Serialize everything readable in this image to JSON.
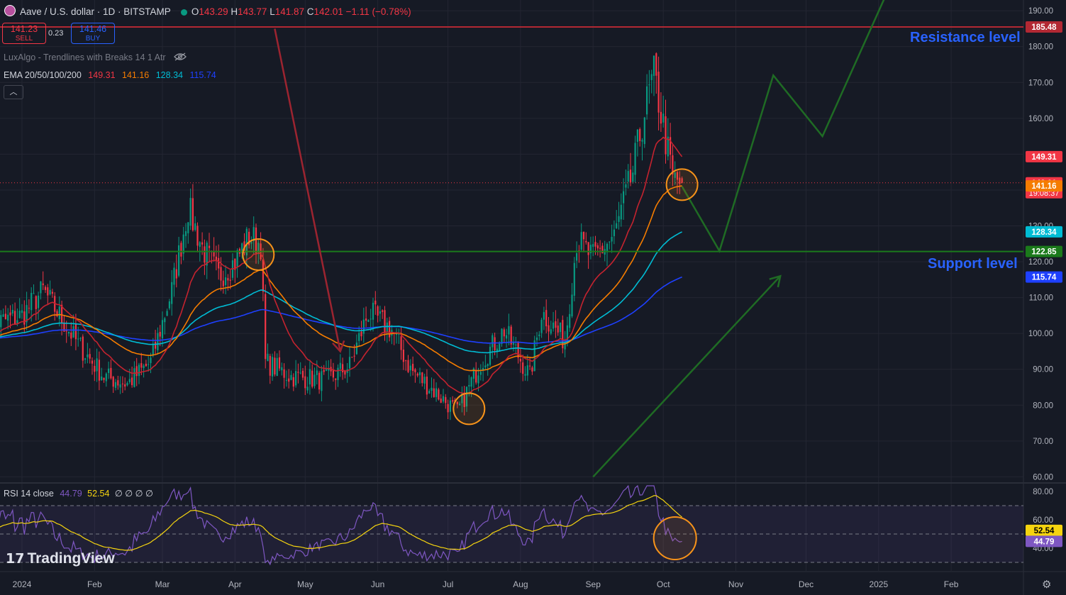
{
  "header": {
    "symbol_title": "Aave / U.S. dollar · 1D · BITSTAMP",
    "open_label": "O",
    "open": "143.29",
    "high_label": "H",
    "high": "143.77",
    "low_label": "L",
    "low": "141.87",
    "close_label": "C",
    "close": "142.01",
    "change": "−1.11 (−0.78%)"
  },
  "trade": {
    "sell_price": "141.23",
    "sell_label": "SELL",
    "spread": "0.23",
    "buy_price": "141.46",
    "buy_label": "BUY"
  },
  "indicators": {
    "luxalgo": "LuxAlgo - Trendlines with Breaks 14 1 Atr",
    "ema_label": "EMA 20/50/100/200",
    "ema_values": [
      "149.31",
      "141.16",
      "128.34",
      "115.74"
    ],
    "ema_colors": [
      "#f23645",
      "#f57c00",
      "#00bcd4",
      "#1e40ff"
    ],
    "collapse_icon": "chevron-up-icon",
    "visibility_icon": "eye-off-icon",
    "rsi_label": "RSI 14 close",
    "rsi_value": "44.79",
    "rsi_ma_value": "52.54",
    "rsi_na": "∅ ∅ ∅ ∅"
  },
  "annotations": {
    "resistance": "Resistance level",
    "support": "Support level"
  },
  "branding": {
    "logo_text": "TradingView",
    "logo_icon": "tradingview-logo-icon",
    "settings_icon": "gear-icon"
  },
  "colors": {
    "background": "#161a25",
    "up": "#089981",
    "down": "#f23645",
    "resistance_line": "#b22833",
    "support_line": "#1b7a1b",
    "projection": "#1f6b24",
    "circle": "#f7931a",
    "rsi_line": "#7e57c2",
    "rsi_ma": "#f5d40f",
    "annotation_text": "#2962ff"
  },
  "chart_data": [
    {
      "type": "candlestick",
      "price_axis": {
        "ticks": [
          60,
          70,
          80,
          90,
          100,
          110,
          120,
          130,
          140,
          150,
          160,
          170,
          180,
          190
        ],
        "range": [
          58.5,
          193
        ]
      },
      "time_axis": {
        "labels": [
          "2024",
          "Feb",
          "Mar",
          "Apr",
          "May",
          "Jun",
          "Jul",
          "Aug",
          "Sep",
          "Oct",
          "Nov",
          "Dec",
          "2025",
          "Feb"
        ]
      },
      "price_labels": [
        {
          "value": 185.48,
          "text": "185.48",
          "color": "#b22833"
        },
        {
          "value": 149.31,
          "text": "149.31",
          "color": "#f23645"
        },
        {
          "value": 142.01,
          "text": "142.01",
          "sub": "19:08:37",
          "color": "#f23645"
        },
        {
          "value": 141.16,
          "text": "141.16",
          "color": "#f57c00"
        },
        {
          "value": 128.34,
          "text": "128.34",
          "color": "#00bcd4"
        },
        {
          "value": 122.85,
          "text": "122.85",
          "color": "#1b7a1b"
        },
        {
          "value": 115.74,
          "text": "115.74",
          "color": "#1e40ff"
        }
      ],
      "horizontal_levels": [
        {
          "name": "resistance",
          "value": 185.48
        },
        {
          "name": "support",
          "value": 122.85
        }
      ],
      "close_anchors": [
        [
          "2023-12-16",
          102
        ],
        [
          "2024-01-01",
          105
        ],
        [
          "2024-01-10",
          112
        ],
        [
          "2024-01-25",
          97
        ],
        [
          "2024-02-05",
          88
        ],
        [
          "2024-02-15",
          86
        ],
        [
          "2024-02-25",
          92
        ],
        [
          "2024-03-05",
          112
        ],
        [
          "2024-03-12",
          135
        ],
        [
          "2024-03-18",
          124
        ],
        [
          "2024-03-25",
          116
        ],
        [
          "2024-04-01",
          120
        ],
        [
          "2024-04-07",
          127
        ],
        [
          "2024-04-12",
          125
        ],
        [
          "2024-04-14",
          92
        ],
        [
          "2024-04-25",
          88
        ],
        [
          "2024-05-10",
          87
        ],
        [
          "2024-05-20",
          91
        ],
        [
          "2024-05-28",
          106
        ],
        [
          "2024-06-07",
          101
        ],
        [
          "2024-06-15",
          90
        ],
        [
          "2024-06-25",
          84
        ],
        [
          "2024-07-05",
          78
        ],
        [
          "2024-07-15",
          92
        ],
        [
          "2024-07-25",
          101
        ],
        [
          "2024-08-05",
          88
        ],
        [
          "2024-08-10",
          106
        ],
        [
          "2024-08-20",
          98
        ],
        [
          "2024-08-25",
          126
        ],
        [
          "2024-09-01",
          121
        ],
        [
          "2024-09-10",
          127
        ],
        [
          "2024-09-18",
          145
        ],
        [
          "2024-09-23",
          162
        ],
        [
          "2024-09-27",
          172
        ],
        [
          "2024-10-01",
          158
        ],
        [
          "2024-10-05",
          143
        ],
        [
          "2024-10-09",
          142.01
        ]
      ],
      "ema_end_values": {
        "ema20": 149.31,
        "ema50": 141.16,
        "ema100": 128.34,
        "ema200": 115.74
      },
      "projection_path": [
        [
          "2024-10-09",
          141
        ],
        [
          "2024-10-25",
          123
        ],
        [
          "2024-11-17",
          172
        ],
        [
          "2024-12-08",
          155
        ],
        [
          "2025-01-08",
          200
        ]
      ],
      "trend_arrows": [
        {
          "name": "bearish-arrow",
          "from": [
            "2024-04-18",
            185
          ],
          "to": [
            "2024-05-16",
            95
          ]
        },
        {
          "name": "bullish-arrow",
          "from": [
            "2024-09-01",
            60
          ],
          "to": [
            "2024-11-20",
            116
          ]
        }
      ],
      "highlight_circles": [
        [
          "2024-04-11",
          122
        ],
        [
          "2024-07-10",
          79
        ],
        [
          "2024-10-09",
          141.5
        ]
      ]
    },
    {
      "type": "line",
      "name": "RSI 14 close",
      "axis": {
        "ticks": [
          40,
          60,
          80
        ],
        "range": [
          24,
          85
        ],
        "bands": [
          30,
          50,
          70
        ]
      },
      "values_last": {
        "rsi": 44.79,
        "rsi_ma": 52.54
      }
    }
  ]
}
